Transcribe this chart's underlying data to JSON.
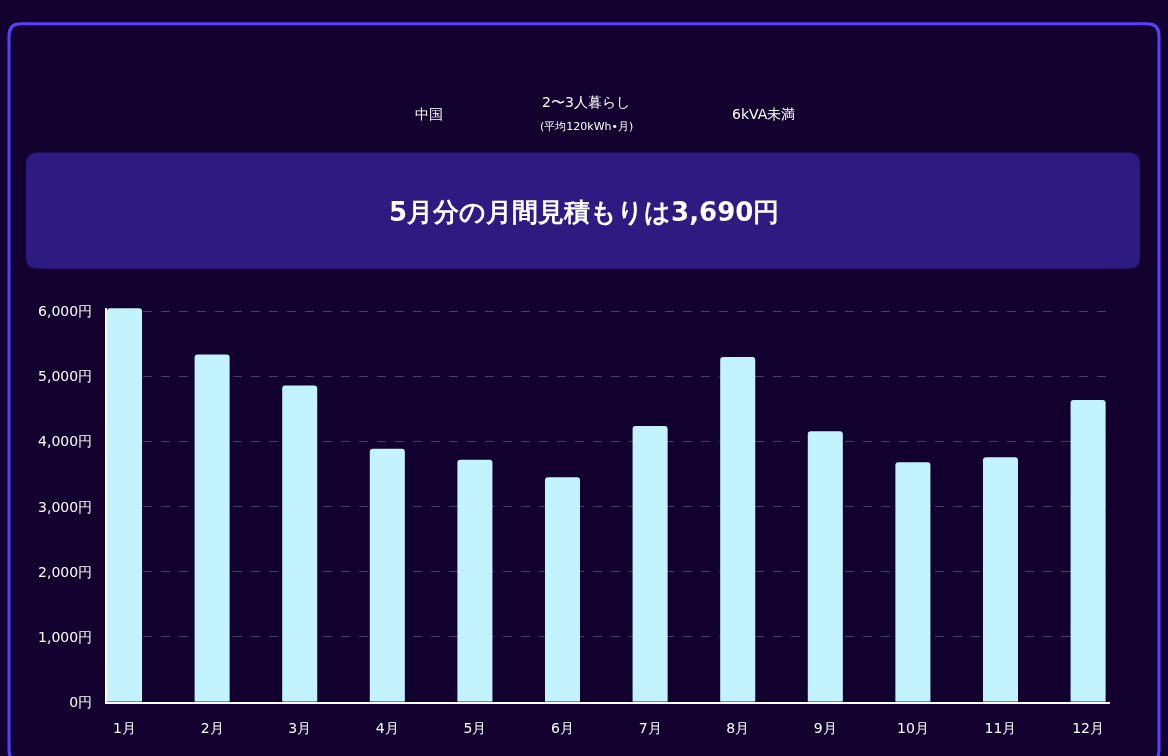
{
  "chart_data": {
    "type": "bar",
    "subtitle": "5月分の月間見積もりは3,690円",
    "annotations": [
      "中国",
      "2〜3人暮らし",
      "(平均120kWh•月)",
      "6kVA未満"
    ],
    "categories": [
      "1月",
      "2月",
      "3月",
      "4月",
      "5月",
      "6月",
      "7月",
      "8月",
      "9月",
      "10月",
      "11月",
      "12月"
    ],
    "values": [
      6050,
      5340,
      4860,
      3890,
      3720,
      3450,
      4240,
      5300,
      4160,
      3680,
      3760,
      4640
    ],
    "color": "#c2f3ff",
    "ylim": [
      0,
      6060
    ],
    "yticks": [
      {
        "value": 0,
        "label": "0円"
      },
      {
        "value": 1000,
        "label": "1,000円"
      },
      {
        "value": 2000,
        "label": "2,000円"
      },
      {
        "value": 3000,
        "label": "3,000円"
      },
      {
        "value": 4000,
        "label": "4,000円"
      },
      {
        "value": 5000,
        "label": "5,000円"
      },
      {
        "value": 6000,
        "label": "6,000円"
      }
    ],
    "grid": "y"
  }
}
